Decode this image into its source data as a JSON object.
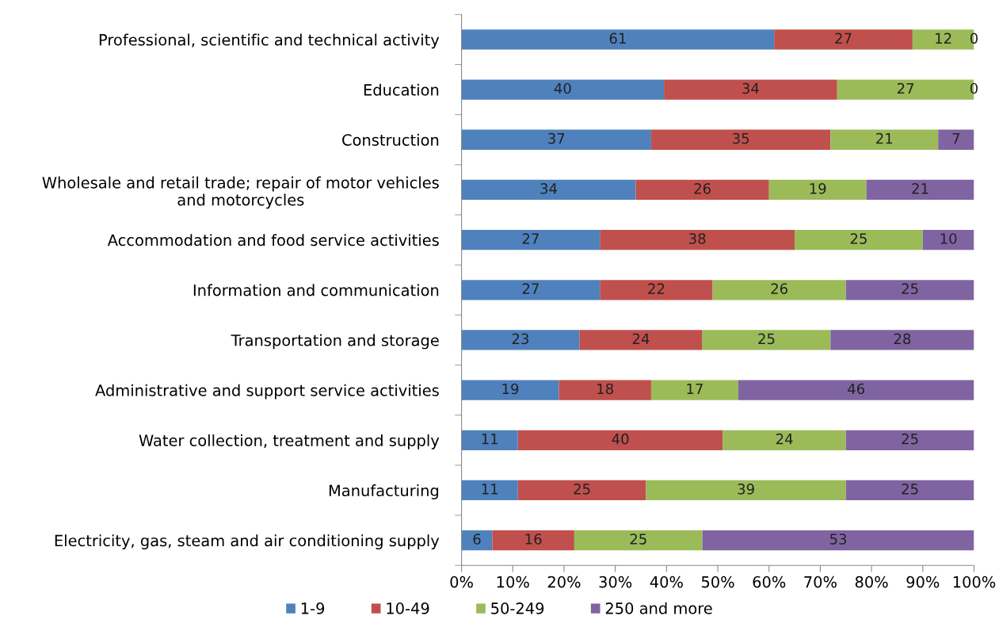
{
  "chart_data": {
    "type": "bar",
    "orientation": "horizontal",
    "stacked": true,
    "categories": [
      "Professional, scientific and technical activity",
      "Education",
      "Construction",
      "Wholesale and retail trade; repair of motor vehicles\nand motorcycles",
      "Accommodation and food service activities",
      "Information and communication",
      "Transportation and storage",
      "Administrative and support service activities",
      "Water collection, treatment and supply",
      "Manufacturing",
      "Electricity, gas, steam and air conditioning supply"
    ],
    "series": [
      {
        "name": "1-9",
        "color": "#4f81bd",
        "values": [
          61,
          39.5,
          37,
          34,
          27,
          27,
          23,
          19,
          11,
          11,
          6
        ],
        "value_labels": [
          "61",
          "40",
          "37",
          "34",
          "27",
          "27",
          "23",
          "19",
          "11",
          "11",
          "6"
        ]
      },
      {
        "name": "10-49",
        "color": "#c0504d",
        "values": [
          27,
          33.8,
          35,
          26,
          38,
          22,
          24,
          18,
          40,
          25,
          16
        ],
        "value_labels": [
          "27",
          "34",
          "35",
          "26",
          "38",
          "22",
          "24",
          "18",
          "40",
          "25",
          "16"
        ]
      },
      {
        "name": "50-249",
        "color": "#9bbb59",
        "values": [
          12,
          26.7,
          21,
          19,
          25,
          26,
          25,
          17,
          24,
          39,
          25
        ],
        "value_labels": [
          "12",
          "27",
          "21",
          "19",
          "25",
          "26",
          "25",
          "17",
          "24",
          "39",
          "25"
        ]
      },
      {
        "name": "250 and more",
        "color": "#8064a2",
        "values": [
          0,
          0,
          7,
          21,
          10,
          25,
          28,
          46,
          25,
          25,
          53
        ],
        "value_labels": [
          "0",
          "0",
          "7",
          "21",
          "10",
          "25",
          "28",
          "46",
          "25",
          "25",
          "53"
        ]
      }
    ],
    "xlim": [
      0,
      100
    ],
    "xticks": [
      {
        "value": 0,
        "label": "0%"
      },
      {
        "value": 10,
        "label": "10%"
      },
      {
        "value": 20,
        "label": "20%"
      },
      {
        "value": 30,
        "label": "30%"
      },
      {
        "value": 40,
        "label": "40%"
      },
      {
        "value": 50,
        "label": "50%"
      },
      {
        "value": 60,
        "label": "60%"
      },
      {
        "value": 70,
        "label": "70%"
      },
      {
        "value": 80,
        "label": "80%"
      },
      {
        "value": 90,
        "label": "90%"
      },
      {
        "value": 100,
        "label": "100%"
      }
    ],
    "grid": false,
    "legend": "bottom"
  }
}
